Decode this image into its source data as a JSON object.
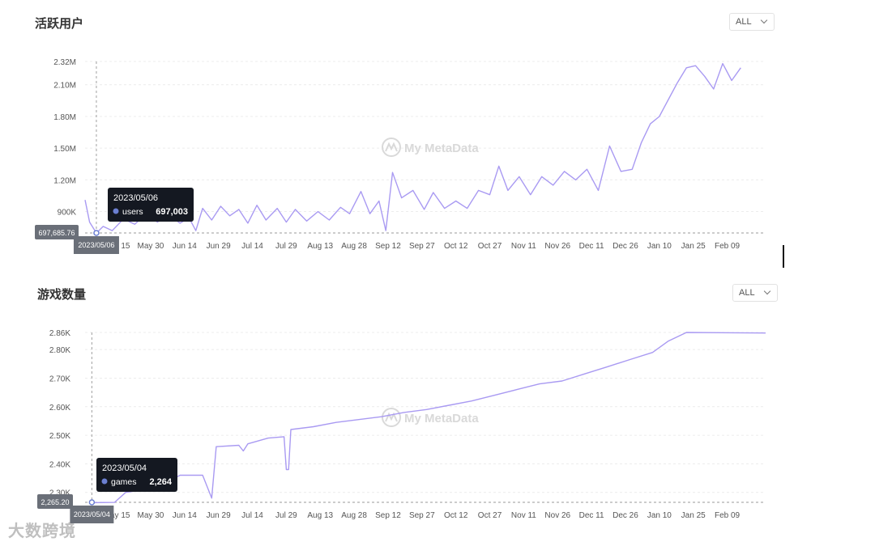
{
  "charts_panel": {
    "watermark": "My MetaData",
    "corner_watermark": "大数跨境"
  },
  "chart_data": [
    {
      "type": "line",
      "title": "活跃用户",
      "range_select": "ALL",
      "series": [
        {
          "name": "users",
          "color": "#a99af2"
        }
      ],
      "y_ticks": [
        "2.32M",
        "2.10M",
        "1.80M",
        "1.50M",
        "1.20M",
        "900K"
      ],
      "y_tick_values": [
        2320000,
        2100000,
        1800000,
        1500000,
        1200000,
        900000
      ],
      "ylim": [
        697685.76,
        2320000
      ],
      "x_ticks": [
        "May 15",
        "May 30",
        "Jun 14",
        "Jun 29",
        "Jul 14",
        "Jul 29",
        "Aug 13",
        "Aug 28",
        "Sep 12",
        "Sep 27",
        "Oct 12",
        "Oct 27",
        "Nov 11",
        "Nov 26",
        "Dec 11",
        "Dec 26",
        "Jan 10",
        "Jan 25",
        "Feb 09"
      ],
      "x_range": [
        "2023-05-01",
        "2024-02-26"
      ],
      "grid": true,
      "points": [
        [
          "2023-05-01",
          1010000
        ],
        [
          "2023-05-03",
          800000
        ],
        [
          "2023-05-06",
          697003
        ],
        [
          "2023-05-09",
          760000
        ],
        [
          "2023-05-13",
          720000
        ],
        [
          "2023-05-18",
          830000
        ],
        [
          "2023-05-23",
          780000
        ],
        [
          "2023-05-28",
          880000
        ],
        [
          "2023-06-02",
          800000
        ],
        [
          "2023-06-07",
          870000
        ],
        [
          "2023-06-12",
          790000
        ],
        [
          "2023-06-16",
          840000
        ],
        [
          "2023-06-19",
          720000
        ],
        [
          "2023-06-22",
          930000
        ],
        [
          "2023-06-26",
          820000
        ],
        [
          "2023-06-30",
          950000
        ],
        [
          "2023-07-04",
          860000
        ],
        [
          "2023-07-08",
          920000
        ],
        [
          "2023-07-12",
          790000
        ],
        [
          "2023-07-16",
          960000
        ],
        [
          "2023-07-20",
          820000
        ],
        [
          "2023-07-25",
          930000
        ],
        [
          "2023-07-29",
          800000
        ],
        [
          "2023-08-02",
          920000
        ],
        [
          "2023-08-07",
          810000
        ],
        [
          "2023-08-12",
          900000
        ],
        [
          "2023-08-17",
          820000
        ],
        [
          "2023-08-22",
          940000
        ],
        [
          "2023-08-26",
          880000
        ],
        [
          "2023-08-31",
          1090000
        ],
        [
          "2023-09-04",
          880000
        ],
        [
          "2023-09-08",
          1000000
        ],
        [
          "2023-09-11",
          720000
        ],
        [
          "2023-09-14",
          1270000
        ],
        [
          "2023-09-18",
          1030000
        ],
        [
          "2023-09-23",
          1100000
        ],
        [
          "2023-09-28",
          920000
        ],
        [
          "2023-10-02",
          1080000
        ],
        [
          "2023-10-07",
          930000
        ],
        [
          "2023-10-12",
          1000000
        ],
        [
          "2023-10-17",
          930000
        ],
        [
          "2023-10-22",
          1100000
        ],
        [
          "2023-10-27",
          1060000
        ],
        [
          "2023-10-31",
          1330000
        ],
        [
          "2023-11-04",
          1100000
        ],
        [
          "2023-11-09",
          1230000
        ],
        [
          "2023-11-14",
          1060000
        ],
        [
          "2023-11-19",
          1230000
        ],
        [
          "2023-11-24",
          1150000
        ],
        [
          "2023-11-29",
          1280000
        ],
        [
          "2023-12-04",
          1200000
        ],
        [
          "2023-12-09",
          1300000
        ],
        [
          "2023-12-14",
          1100000
        ],
        [
          "2023-12-19",
          1520000
        ],
        [
          "2023-12-24",
          1280000
        ],
        [
          "2023-12-29",
          1300000
        ],
        [
          "2024-01-02",
          1550000
        ],
        [
          "2024-01-06",
          1730000
        ],
        [
          "2024-01-10",
          1800000
        ],
        [
          "2024-01-14",
          1960000
        ],
        [
          "2024-01-18",
          2120000
        ],
        [
          "2024-01-22",
          2260000
        ],
        [
          "2024-01-26",
          2280000
        ],
        [
          "2024-01-30",
          2180000
        ],
        [
          "2024-02-03",
          2060000
        ],
        [
          "2024-02-07",
          2300000
        ],
        [
          "2024-02-11",
          2140000
        ],
        [
          "2024-02-15",
          2260000
        ]
      ],
      "crosshair": {
        "date": "2023/05/06",
        "value_label": "697,685.76"
      },
      "tooltip": {
        "date": "2023/05/06",
        "series_label": "users",
        "value": "697,003"
      }
    },
    {
      "type": "line",
      "title": "游戏数量",
      "range_select": "ALL",
      "series": [
        {
          "name": "games",
          "color": "#a99af2"
        }
      ],
      "y_ticks": [
        "2.86K",
        "2.80K",
        "2.70K",
        "2.60K",
        "2.50K",
        "2.40K",
        "2.30K"
      ],
      "y_tick_values": [
        2860,
        2800,
        2700,
        2600,
        2500,
        2400,
        2300
      ],
      "ylim": [
        2265.2,
        2860
      ],
      "x_ticks": [
        "May 15",
        "May 30",
        "Jun 14",
        "Jun 29",
        "Jul 14",
        "Jul 29",
        "Aug 13",
        "Aug 28",
        "Sep 12",
        "Sep 27",
        "Oct 12",
        "Oct 27",
        "Nov 11",
        "Nov 26",
        "Dec 11",
        "Dec 26",
        "Jan 10",
        "Jan 25",
        "Feb 09"
      ],
      "x_range": [
        "2023-05-01",
        "2024-02-26"
      ],
      "grid": true,
      "points": [
        [
          "2023-05-04",
          2264
        ],
        [
          "2023-05-14",
          2265
        ],
        [
          "2023-05-19",
          2300
        ],
        [
          "2023-05-28",
          2310
        ],
        [
          "2023-06-05",
          2330
        ],
        [
          "2023-06-12",
          2360
        ],
        [
          "2023-06-22",
          2360
        ],
        [
          "2023-06-26",
          2280
        ],
        [
          "2023-06-28",
          2460
        ],
        [
          "2023-07-08",
          2465
        ],
        [
          "2023-07-10",
          2445
        ],
        [
          "2023-07-12",
          2470
        ],
        [
          "2023-07-21",
          2490
        ],
        [
          "2023-07-28",
          2495
        ],
        [
          "2023-07-29",
          2380
        ],
        [
          "2023-07-30",
          2380
        ],
        [
          "2023-07-31",
          2520
        ],
        [
          "2023-08-10",
          2530
        ],
        [
          "2023-08-20",
          2545
        ],
        [
          "2023-08-30",
          2555
        ],
        [
          "2023-09-09",
          2565
        ],
        [
          "2023-09-19",
          2580
        ],
        [
          "2023-09-29",
          2590
        ],
        [
          "2023-10-09",
          2605
        ],
        [
          "2023-10-19",
          2620
        ],
        [
          "2023-10-29",
          2640
        ],
        [
          "2023-11-08",
          2660
        ],
        [
          "2023-11-18",
          2680
        ],
        [
          "2023-11-28",
          2690
        ],
        [
          "2023-12-08",
          2715
        ],
        [
          "2023-12-18",
          2740
        ],
        [
          "2023-12-28",
          2765
        ],
        [
          "2024-01-07",
          2790
        ],
        [
          "2024-01-14",
          2830
        ],
        [
          "2024-01-22",
          2860
        ],
        [
          "2024-02-26",
          2858
        ]
      ],
      "crosshair": {
        "date": "2023/05/04",
        "value_label": "2,265.20"
      },
      "tooltip": {
        "date": "2023/05/04",
        "series_label": "games",
        "value": "2,264"
      }
    }
  ]
}
